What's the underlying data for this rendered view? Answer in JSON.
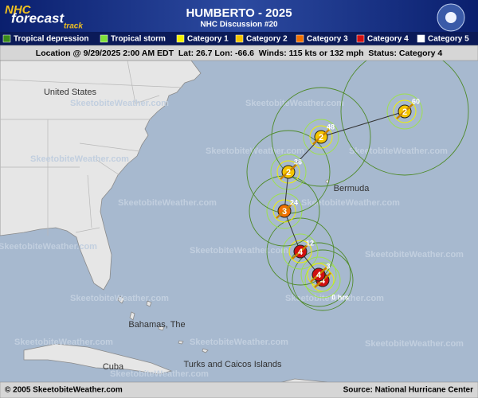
{
  "header": {
    "logo": [
      "NHC",
      "forecast",
      "track"
    ],
    "title": "HUMBERTO - 2025",
    "subtitle": "NHC Discussion #20"
  },
  "legend": [
    {
      "label": "Tropical depression",
      "color": "#3a8a1a"
    },
    {
      "label": "Tropical storm",
      "color": "#7ee03a"
    },
    {
      "label": "Category 1",
      "color": "#f4f000"
    },
    {
      "label": "Category 2",
      "color": "#f4c400"
    },
    {
      "label": "Category 3",
      "color": "#f07000"
    },
    {
      "label": "Category 4",
      "color": "#d01010"
    },
    {
      "label": "Category 5",
      "color": "#ffffff"
    }
  ],
  "info": "Location @ 9/29/2025 2:00 AM EDT  Lat: 26.7 Lon: -66.6  Winds: 115 kts or 132 mph  Status: Category 4",
  "map_labels": [
    "United States",
    "Bermuda",
    "Bahamas, The",
    "Cuba",
    "Turks and Caicos Islands"
  ],
  "watermark": "SkeetobiteWeather.com",
  "forecast_points": [
    {
      "hours": "0 hrs",
      "category": "4"
    },
    {
      "hours": "3",
      "category": "4"
    },
    {
      "hours": "12",
      "category": "4"
    },
    {
      "hours": "24",
      "category": "3"
    },
    {
      "hours": "36",
      "category": "2"
    },
    {
      "hours": "48",
      "category": "2"
    },
    {
      "hours": "60",
      "category": "2"
    }
  ],
  "footer": {
    "left": "© 2005 SkeetobiteWeather.com",
    "right": "Source: National Hurricane Center"
  }
}
